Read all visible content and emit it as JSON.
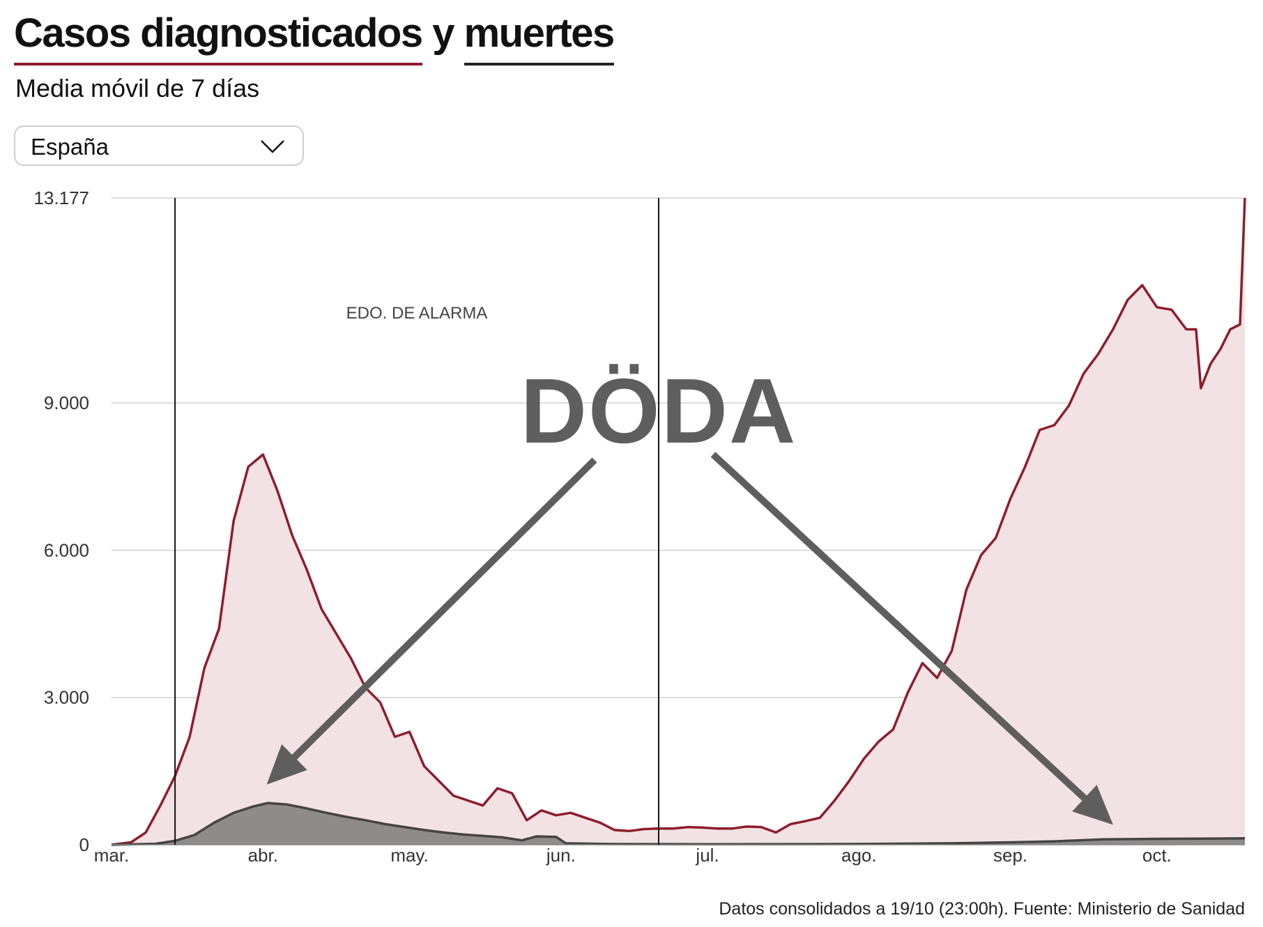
{
  "header": {
    "title_part1": "Casos diagnosticados",
    "title_conj": " y ",
    "title_part2": "muertes",
    "subtitle": "Media móvil de 7 días"
  },
  "selector": {
    "value": "España",
    "icon": "chevron-down-icon"
  },
  "footer": {
    "source": "Datos consolidados a 19/10 (23:00h). Fuente: Ministerio de Sanidad"
  },
  "colors": {
    "cases_line": "#8e1d2b",
    "cases_fill": "#f3e2e4",
    "deaths_line": "#444444",
    "deaths_fill": "#8f8b8b",
    "grid": "#d2d2d2",
    "arrow": "#5e5e5e"
  },
  "chart_data": {
    "type": "area",
    "title": "Casos diagnosticados y muertes",
    "subtitle": "Media móvil de 7 días",
    "xlabel": "",
    "ylabel": "",
    "x_range": [
      "2020-03-01",
      "2020-10-19"
    ],
    "ylim": [
      0,
      13177
    ],
    "y_ticks": [
      0,
      3000,
      6000,
      9000,
      13177
    ],
    "y_tick_labels": [
      "0",
      "3.000",
      "6.000",
      "9.000",
      "13.177"
    ],
    "x_tick_labels": [
      {
        "date": "2020-03-01",
        "label": "mar."
      },
      {
        "date": "2020-04-01",
        "label": "abr."
      },
      {
        "date": "2020-05-01",
        "label": "may."
      },
      {
        "date": "2020-06-01",
        "label": "jun."
      },
      {
        "date": "2020-07-01",
        "label": "jul."
      },
      {
        "date": "2020-08-01",
        "label": "ago."
      },
      {
        "date": "2020-09-01",
        "label": "sep."
      },
      {
        "date": "2020-10-01",
        "label": "oct."
      }
    ],
    "grid": true,
    "annotations": [
      {
        "type": "period",
        "label": "EDO. DE ALARMA",
        "start": "2020-03-14",
        "end": "2020-06-21"
      },
      {
        "type": "stamp",
        "label": "DÖDA",
        "points_to": [
          "2020-03-31",
          "2020-09-22"
        ]
      }
    ],
    "series": [
      {
        "name": "Casos diagnosticados",
        "points": [
          [
            "2020-03-01",
            0
          ],
          [
            "2020-03-05",
            50
          ],
          [
            "2020-03-08",
            250
          ],
          [
            "2020-03-11",
            800
          ],
          [
            "2020-03-14",
            1400
          ],
          [
            "2020-03-17",
            2200
          ],
          [
            "2020-03-20",
            3600
          ],
          [
            "2020-03-23",
            4400
          ],
          [
            "2020-03-26",
            6600
          ],
          [
            "2020-03-29",
            7700
          ],
          [
            "2020-04-01",
            7950
          ],
          [
            "2020-04-04",
            7200
          ],
          [
            "2020-04-07",
            6300
          ],
          [
            "2020-04-10",
            5600
          ],
          [
            "2020-04-13",
            4800
          ],
          [
            "2020-04-16",
            4300
          ],
          [
            "2020-04-19",
            3800
          ],
          [
            "2020-04-22",
            3200
          ],
          [
            "2020-04-25",
            2900
          ],
          [
            "2020-04-28",
            2200
          ],
          [
            "2020-05-01",
            2300
          ],
          [
            "2020-05-04",
            1600
          ],
          [
            "2020-05-07",
            1300
          ],
          [
            "2020-05-10",
            1000
          ],
          [
            "2020-05-13",
            900
          ],
          [
            "2020-05-16",
            800
          ],
          [
            "2020-05-19",
            1150
          ],
          [
            "2020-05-22",
            1050
          ],
          [
            "2020-05-25",
            500
          ],
          [
            "2020-05-28",
            700
          ],
          [
            "2020-05-31",
            600
          ],
          [
            "2020-06-03",
            650
          ],
          [
            "2020-06-06",
            550
          ],
          [
            "2020-06-09",
            450
          ],
          [
            "2020-06-12",
            300
          ],
          [
            "2020-06-15",
            280
          ],
          [
            "2020-06-18",
            320
          ],
          [
            "2020-06-21",
            330
          ],
          [
            "2020-06-24",
            330
          ],
          [
            "2020-06-27",
            360
          ],
          [
            "2020-06-30",
            350
          ],
          [
            "2020-07-03",
            330
          ],
          [
            "2020-07-06",
            330
          ],
          [
            "2020-07-09",
            370
          ],
          [
            "2020-07-12",
            360
          ],
          [
            "2020-07-15",
            250
          ],
          [
            "2020-07-18",
            420
          ],
          [
            "2020-07-21",
            480
          ],
          [
            "2020-07-24",
            550
          ],
          [
            "2020-07-27",
            900
          ],
          [
            "2020-07-30",
            1300
          ],
          [
            "2020-08-02",
            1750
          ],
          [
            "2020-08-05",
            2100
          ],
          [
            "2020-08-08",
            2350
          ],
          [
            "2020-08-11",
            3100
          ],
          [
            "2020-08-14",
            3700
          ],
          [
            "2020-08-17",
            3400
          ],
          [
            "2020-08-20",
            3950
          ],
          [
            "2020-08-23",
            5200
          ],
          [
            "2020-08-26",
            5900
          ],
          [
            "2020-08-29",
            6250
          ],
          [
            "2020-09-01",
            7050
          ],
          [
            "2020-09-04",
            7700
          ],
          [
            "2020-09-07",
            8450
          ],
          [
            "2020-09-10",
            8550
          ],
          [
            "2020-09-13",
            8950
          ],
          [
            "2020-09-16",
            9600
          ],
          [
            "2020-09-19",
            10000
          ],
          [
            "2020-09-22",
            10500
          ],
          [
            "2020-09-25",
            11100
          ],
          [
            "2020-09-28",
            11400
          ],
          [
            "2020-10-01",
            10950
          ],
          [
            "2020-10-04",
            10900
          ],
          [
            "2020-10-07",
            10500
          ],
          [
            "2020-10-09",
            10500
          ],
          [
            "2020-10-10",
            9300
          ],
          [
            "2020-10-12",
            9800
          ],
          [
            "2020-10-14",
            10100
          ],
          [
            "2020-10-16",
            10500
          ],
          [
            "2020-10-18",
            10600
          ],
          [
            "2020-10-19",
            13177
          ]
        ]
      },
      {
        "name": "Muertes",
        "points": [
          [
            "2020-03-01",
            0
          ],
          [
            "2020-03-10",
            20
          ],
          [
            "2020-03-14",
            80
          ],
          [
            "2020-03-18",
            200
          ],
          [
            "2020-03-22",
            450
          ],
          [
            "2020-03-26",
            650
          ],
          [
            "2020-03-30",
            780
          ],
          [
            "2020-04-02",
            850
          ],
          [
            "2020-04-06",
            820
          ],
          [
            "2020-04-10",
            740
          ],
          [
            "2020-04-14",
            650
          ],
          [
            "2020-04-18",
            570
          ],
          [
            "2020-04-22",
            500
          ],
          [
            "2020-04-26",
            420
          ],
          [
            "2020-04-30",
            360
          ],
          [
            "2020-05-04",
            300
          ],
          [
            "2020-05-08",
            250
          ],
          [
            "2020-05-12",
            210
          ],
          [
            "2020-05-16",
            180
          ],
          [
            "2020-05-20",
            150
          ],
          [
            "2020-05-24",
            90
          ],
          [
            "2020-05-27",
            170
          ],
          [
            "2020-05-31",
            160
          ],
          [
            "2020-06-02",
            30
          ],
          [
            "2020-06-10",
            15
          ],
          [
            "2020-07-01",
            10
          ],
          [
            "2020-08-01",
            15
          ],
          [
            "2020-08-20",
            30
          ],
          [
            "2020-09-01",
            50
          ],
          [
            "2020-09-10",
            70
          ],
          [
            "2020-09-20",
            110
          ],
          [
            "2020-10-01",
            120
          ],
          [
            "2020-10-10",
            125
          ],
          [
            "2020-10-19",
            130
          ]
        ]
      }
    ]
  }
}
